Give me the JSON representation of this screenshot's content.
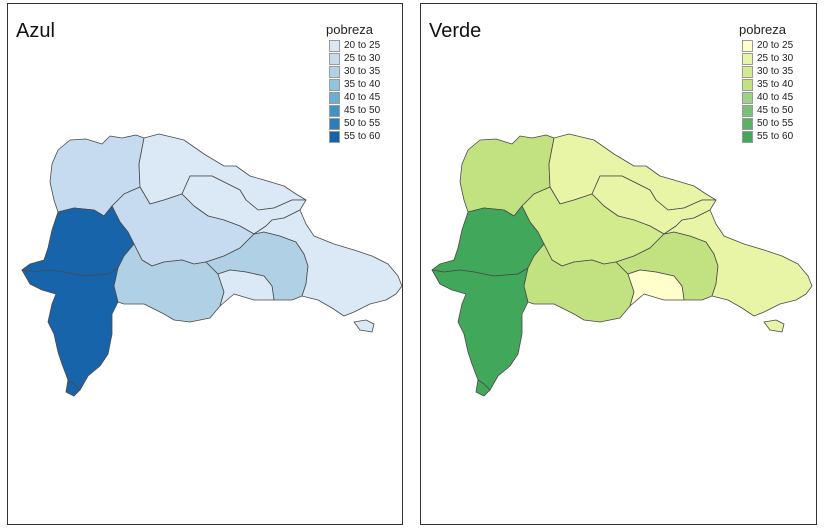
{
  "panels": [
    {
      "id": "left",
      "title": "Azul",
      "legend_title": "pobreza",
      "legend": [
        {
          "label": "20 to 25",
          "color": "#dbe9f7"
        },
        {
          "label": "25 to 30",
          "color": "#c6dbef"
        },
        {
          "label": "30 to 35",
          "color": "#b0d0e6"
        },
        {
          "label": "35 to 40",
          "color": "#93c4df"
        },
        {
          "label": "40 to 45",
          "color": "#6aaed6"
        },
        {
          "label": "45 to 50",
          "color": "#4292c6"
        },
        {
          "label": "50 to 55",
          "color": "#2d7dbb"
        },
        {
          "label": "55 to 60",
          "color": "#1764ab"
        }
      ],
      "regions": {
        "northwest": 1,
        "north": 0,
        "northeast": 0,
        "central": 1,
        "west": 7,
        "southwest": 7,
        "south_central": 2,
        "south_east_central": 2,
        "capital": 0,
        "east": 0
      }
    },
    {
      "id": "right",
      "title": "Verde",
      "legend_title": "pobreza",
      "legend": [
        {
          "label": "20 to 25",
          "color": "#ffffcc"
        },
        {
          "label": "25 to 30",
          "color": "#e8f5a7"
        },
        {
          "label": "30 to 35",
          "color": "#d2eb8c"
        },
        {
          "label": "35 to 40",
          "color": "#c2e281"
        },
        {
          "label": "40 to 45",
          "color": "#9fd384"
        },
        {
          "label": "45 to 50",
          "color": "#7ac07a"
        },
        {
          "label": "50 to 55",
          "color": "#5cb264"
        },
        {
          "label": "55 to 60",
          "color": "#41a85b"
        }
      ],
      "regions": {
        "northwest": 3,
        "north": 1,
        "northeast": 1,
        "central": 2,
        "west": 7,
        "southwest": 7,
        "south_central": 3,
        "south_east_central": 3,
        "capital": 0,
        "east": 1
      }
    }
  ]
}
